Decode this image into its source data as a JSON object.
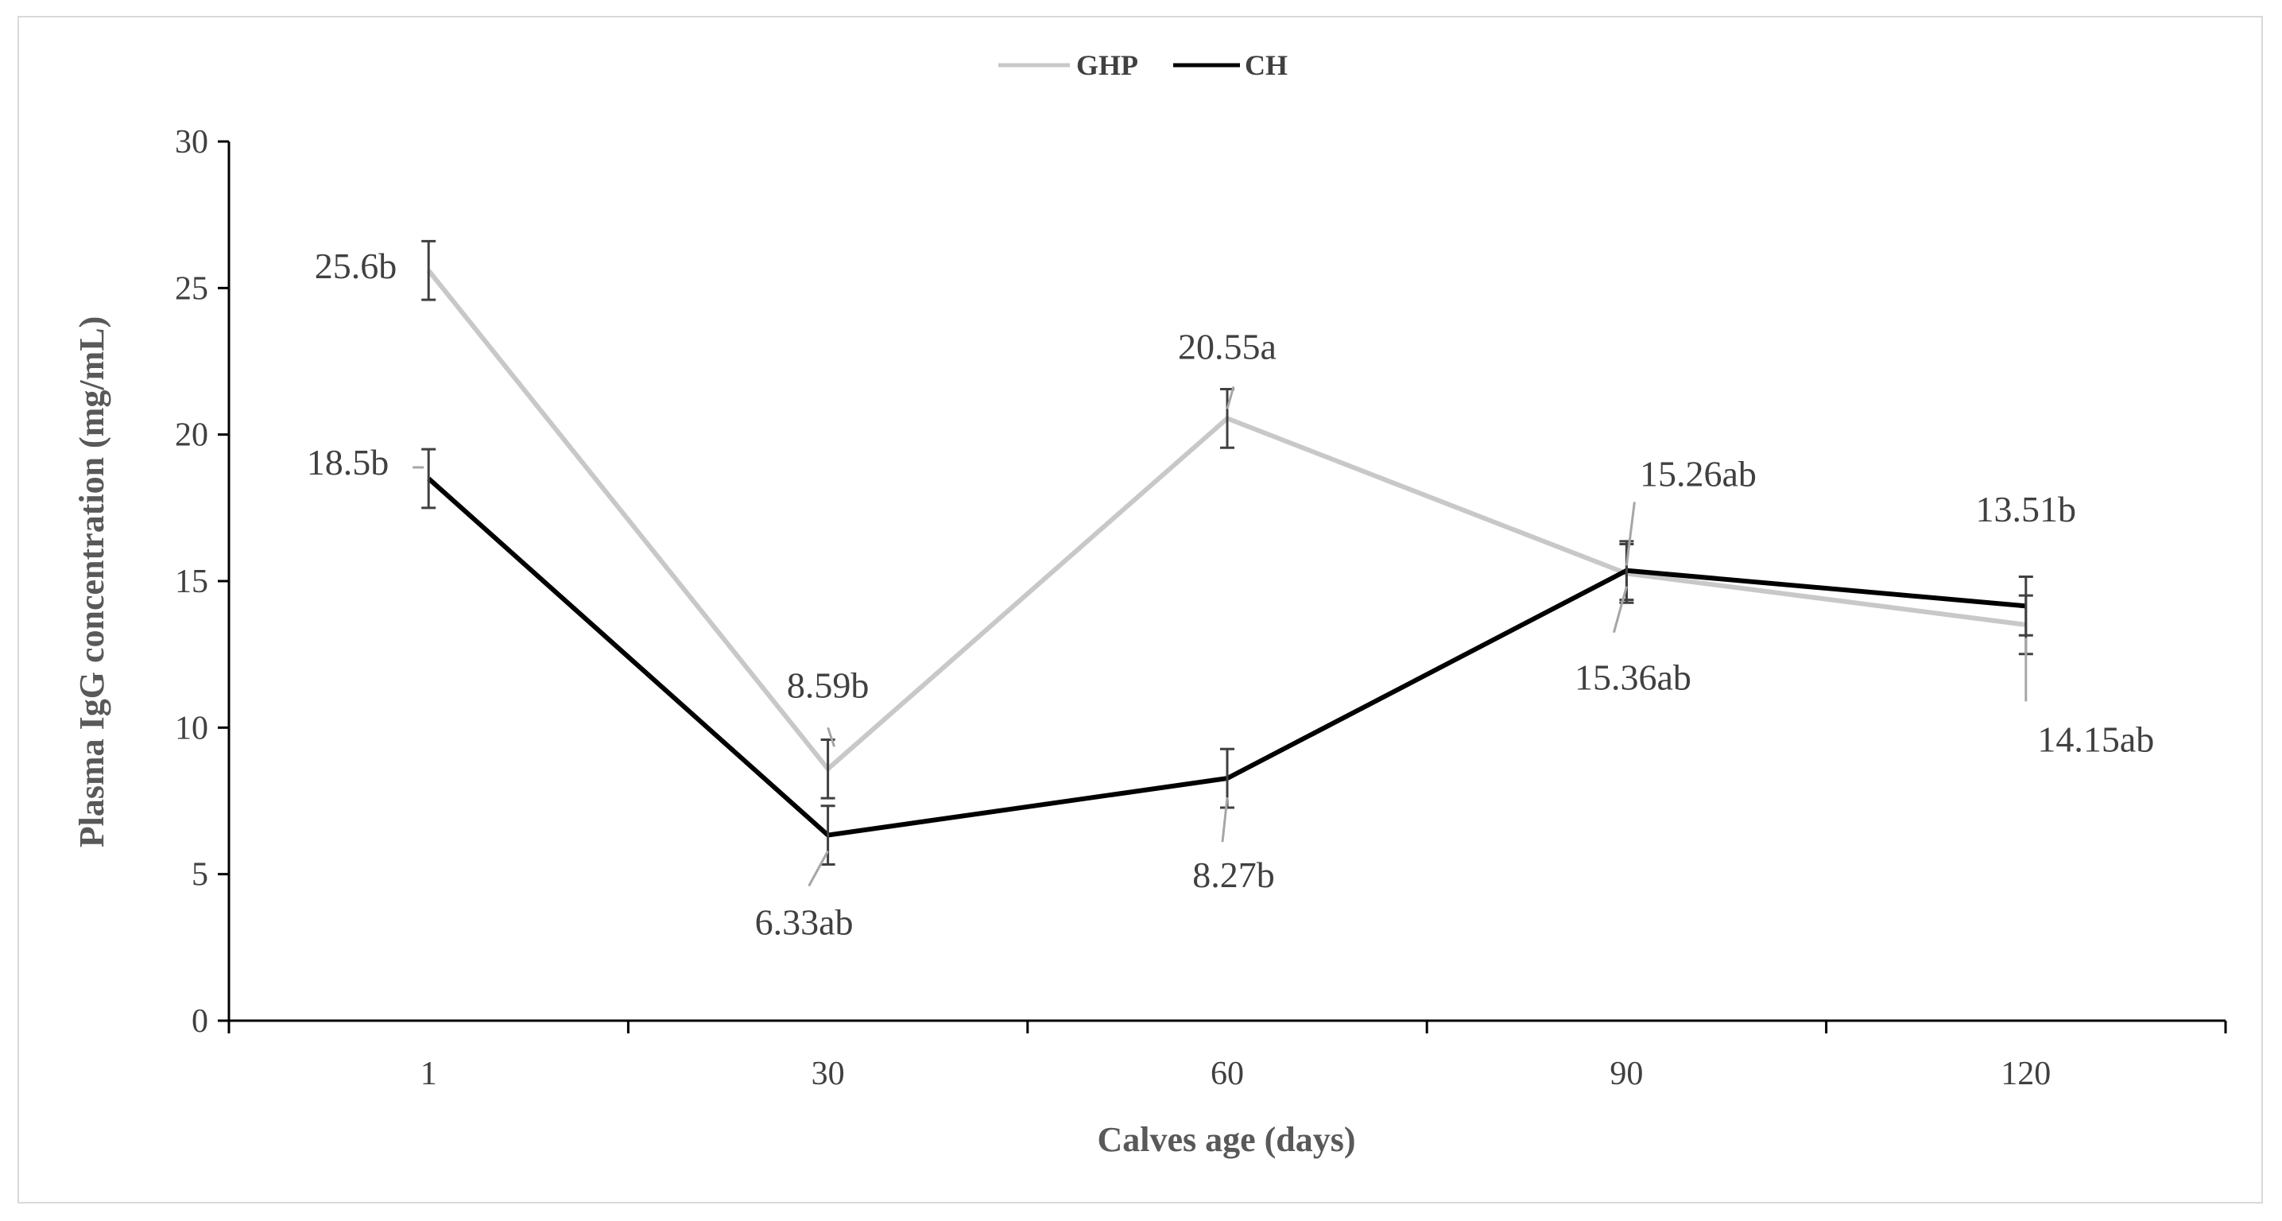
{
  "chart_data": {
    "type": "line",
    "title": "",
    "xlabel": "Calves age (days)",
    "ylabel": "Plasma IgG concentration (mg/mL)",
    "categories": [
      "1",
      "30",
      "60",
      "90",
      "120"
    ],
    "ylim": [
      0,
      30
    ],
    "yticks": [
      "0",
      "5",
      "10",
      "15",
      "20",
      "25",
      "30"
    ],
    "legend_position": "top-center",
    "series": [
      {
        "name": "GHP",
        "color": "#c8c8c8",
        "values": [
          25.6,
          8.59,
          20.55,
          15.26,
          13.51
        ],
        "errors": [
          1.0,
          1.0,
          1.0,
          1.0,
          1.0
        ],
        "labels": [
          "25.6b",
          "8.59b",
          "20.55a",
          "15.26ab",
          "13.51b"
        ]
      },
      {
        "name": "CH",
        "color": "#000000",
        "values": [
          18.5,
          6.33,
          8.27,
          15.36,
          14.15
        ],
        "errors": [
          1.0,
          1.0,
          1.0,
          1.0,
          1.0
        ],
        "labels": [
          "18.5b",
          "6.33ab",
          "8.27b",
          "15.36ab",
          "14.15ab"
        ]
      }
    ]
  }
}
